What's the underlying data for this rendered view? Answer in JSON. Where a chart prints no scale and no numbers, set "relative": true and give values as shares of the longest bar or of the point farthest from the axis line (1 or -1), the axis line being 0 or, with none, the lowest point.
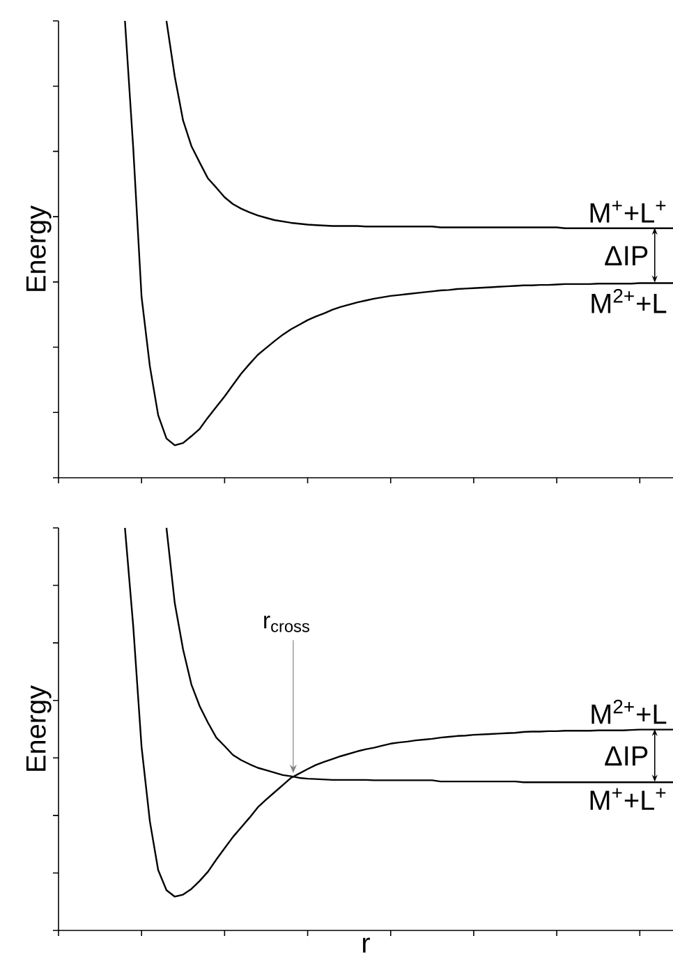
{
  "chart_data": [
    {
      "type": "line",
      "ylabel": "Energy",
      "relative": true,
      "categories": [
        null,
        null,
        null,
        null,
        null,
        null,
        null,
        null,
        null,
        null,
        null,
        null,
        null,
        null,
        null,
        null,
        null,
        null,
        null,
        null,
        null,
        null,
        null,
        null,
        null,
        null,
        null,
        null,
        null,
        null,
        null,
        null,
        null,
        null,
        null,
        null,
        null,
        null,
        null,
        null,
        null,
        null,
        null,
        null,
        null,
        null,
        null,
        null,
        null,
        null,
        null,
        null,
        null,
        null,
        null,
        null,
        null,
        null,
        null,
        null,
        null,
        null,
        null,
        null,
        null,
        null,
        null,
        null,
        null,
        null,
        null,
        null,
        null,
        null,
        null
      ],
      "series": [
        {
          "name": "M$^{+}$+L$^{+}$",
          "color": "#000000",
          "values": [
            null,
            null,
            null,
            null,
            null,
            null,
            null,
            null,
            null,
            null,
            null,
            null,
            null,
            1.0,
            0.878,
            0.782,
            0.726,
            0.69,
            0.655,
            0.635,
            0.614,
            0.599,
            0.589,
            0.581,
            0.574,
            0.569,
            0.564,
            0.561,
            0.558,
            0.556,
            0.554,
            0.553,
            0.552,
            0.551,
            0.551,
            0.551,
            0.551,
            0.55,
            0.55,
            0.55,
            0.55,
            0.55,
            0.55,
            0.55,
            0.55,
            0.55,
            0.548,
            0.548,
            0.548,
            0.548,
            0.548,
            0.548,
            0.548,
            0.548,
            0.548,
            0.548,
            0.548,
            0.548,
            0.548,
            0.548,
            0.548,
            0.546,
            0.546,
            0.546,
            0.546,
            0.546,
            0.546,
            0.546,
            0.546,
            0.546,
            0.546,
            0.546,
            0.546,
            0.546,
            0.546
          ]
        },
        {
          "name": "M$^{2+}$+L",
          "color": "#000000",
          "values": [
            null,
            null,
            null,
            null,
            null,
            null,
            null,
            null,
            1.0,
            0.721,
            0.396,
            0.244,
            0.137,
            0.086,
            0.071,
            0.076,
            0.091,
            0.107,
            0.132,
            0.155,
            0.178,
            0.203,
            0.228,
            0.249,
            0.269,
            0.284,
            0.299,
            0.313,
            0.325,
            0.335,
            0.345,
            0.353,
            0.36,
            0.368,
            0.374,
            0.379,
            0.384,
            0.388,
            0.392,
            0.395,
            0.398,
            0.4,
            0.402,
            0.404,
            0.406,
            0.408,
            0.41,
            0.411,
            0.413,
            0.414,
            0.415,
            0.416,
            0.417,
            0.418,
            0.419,
            0.42,
            0.421,
            0.421,
            0.422,
            0.422,
            0.423,
            0.424,
            0.424,
            0.424,
            0.424,
            0.425,
            0.425,
            0.425,
            0.425,
            0.425,
            0.426,
            0.426,
            0.426,
            0.426,
            0.426
          ]
        }
      ],
      "annotations": [
        "ΔIP"
      ]
    },
    {
      "type": "line",
      "ylabel": "Energy",
      "xlabel": "r",
      "relative": true,
      "categories": [
        null,
        null,
        null,
        null,
        null,
        null,
        null,
        null,
        null,
        null,
        null,
        null,
        null,
        null,
        null,
        null,
        null,
        null,
        null,
        null,
        null,
        null,
        null,
        null,
        null,
        null,
        null,
        null,
        null,
        null,
        null,
        null,
        null,
        null,
        null,
        null,
        null,
        null,
        null,
        null,
        null,
        null,
        null,
        null,
        null,
        null,
        null,
        null,
        null,
        null,
        null,
        null,
        null,
        null,
        null,
        null,
        null,
        null,
        null,
        null,
        null,
        null,
        null,
        null,
        null,
        null,
        null,
        null,
        null,
        null,
        null,
        null,
        null,
        null,
        null
      ],
      "series": [
        {
          "name": "M$^{2+}$+L",
          "color": "#000000",
          "values": [
            null,
            null,
            null,
            null,
            null,
            null,
            null,
            null,
            1.0,
            0.755,
            0.456,
            0.271,
            0.15,
            0.1,
            0.084,
            0.089,
            0.103,
            0.123,
            0.146,
            0.176,
            0.204,
            0.232,
            0.256,
            0.28,
            0.306,
            0.325,
            0.343,
            0.361,
            0.379,
            0.39,
            0.401,
            0.411,
            0.419,
            0.426,
            0.433,
            0.439,
            0.445,
            0.45,
            0.454,
            0.459,
            0.464,
            0.467,
            0.469,
            0.472,
            0.474,
            0.476,
            0.479,
            0.481,
            0.483,
            0.484,
            0.486,
            0.487,
            0.488,
            0.489,
            0.49,
            0.491,
            0.493,
            0.494,
            0.494,
            0.495,
            0.495,
            0.496,
            0.496,
            0.496,
            0.496,
            0.497,
            0.497,
            0.497,
            0.497,
            0.498,
            0.499,
            0.499,
            0.499,
            0.499,
            0.499
          ]
        },
        {
          "name": "M$^{+}$+L$^{+}$",
          "color": "#000000",
          "values": [
            null,
            null,
            null,
            null,
            null,
            null,
            null,
            null,
            null,
            null,
            null,
            null,
            null,
            1.0,
            0.813,
            0.698,
            0.611,
            0.557,
            0.516,
            0.479,
            0.458,
            0.436,
            0.423,
            0.413,
            0.404,
            0.398,
            0.392,
            0.386,
            0.383,
            0.379,
            0.377,
            0.376,
            0.375,
            0.374,
            0.374,
            0.374,
            0.374,
            0.374,
            0.373,
            0.373,
            0.373,
            0.373,
            0.373,
            0.373,
            0.373,
            0.373,
            0.37,
            0.37,
            0.37,
            0.37,
            0.37,
            0.37,
            0.37,
            0.37,
            0.37,
            0.37,
            0.368,
            0.368,
            0.368,
            0.368,
            0.368,
            0.368,
            0.368,
            0.368,
            0.368,
            0.368,
            0.368,
            0.368,
            0.368,
            0.368,
            0.368,
            0.368,
            0.368,
            0.368,
            0.368
          ]
        }
      ],
      "annotations": [
        {
          "text": "r$_{cross}$",
          "y": 0.38
        },
        "ΔIP"
      ]
    }
  ]
}
